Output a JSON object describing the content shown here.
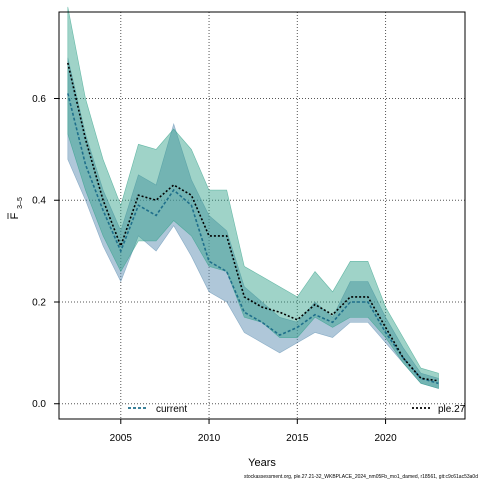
{
  "chart_data": {
    "type": "line",
    "xlabel": "Years",
    "ylabel_main": "F",
    "ylabel_sub": "3–5",
    "xlim": [
      2001.5,
      2024.5
    ],
    "ylim": [
      -0.03,
      0.77
    ],
    "x_ticks": [
      2005,
      2010,
      2015,
      2020
    ],
    "y_ticks": [
      0.0,
      0.2,
      0.4,
      0.6
    ],
    "y_tick_labels": [
      "0.0",
      "0.2",
      "0.4",
      "0.6"
    ],
    "grid": true,
    "legend_position": "bottom",
    "x": [
      2002,
      2003,
      2004,
      2005,
      2006,
      2007,
      2008,
      2009,
      2010,
      2011,
      2012,
      2013,
      2014,
      2015,
      2016,
      2017,
      2018,
      2019,
      2020,
      2021,
      2022,
      2023
    ],
    "bands": [
      {
        "color": "#5f8fb3",
        "opacity": 0.5,
        "lower": [
          0.48,
          0.4,
          0.31,
          0.24,
          0.33,
          0.3,
          0.35,
          0.29,
          0.22,
          0.2,
          0.14,
          0.12,
          0.1,
          0.12,
          0.14,
          0.13,
          0.16,
          0.16,
          0.12,
          0.08,
          0.04,
          0.03
        ],
        "upper": [
          0.68,
          0.53,
          0.42,
          0.34,
          0.45,
          0.43,
          0.55,
          0.44,
          0.37,
          0.34,
          0.23,
          0.2,
          0.17,
          0.16,
          0.2,
          0.17,
          0.24,
          0.24,
          0.17,
          0.11,
          0.06,
          0.05
        ]
      },
      {
        "color": "#2a9d84",
        "opacity": 0.45,
        "lower": [
          0.53,
          0.42,
          0.33,
          0.26,
          0.32,
          0.32,
          0.36,
          0.33,
          0.27,
          0.26,
          0.17,
          0.16,
          0.13,
          0.13,
          0.17,
          0.15,
          0.17,
          0.17,
          0.13,
          0.08,
          0.04,
          0.03
        ],
        "upper": [
          0.78,
          0.6,
          0.48,
          0.39,
          0.51,
          0.5,
          0.54,
          0.5,
          0.42,
          0.42,
          0.27,
          0.25,
          0.23,
          0.21,
          0.26,
          0.22,
          0.28,
          0.28,
          0.19,
          0.13,
          0.07,
          0.06
        ]
      }
    ],
    "series": [
      {
        "name": "current",
        "color": "#1f6f8b",
        "dash": "3,2",
        "values": [
          0.61,
          0.47,
          0.38,
          0.3,
          0.39,
          0.37,
          0.42,
          0.39,
          0.28,
          0.26,
          0.18,
          0.16,
          0.135,
          0.15,
          0.175,
          0.16,
          0.2,
          0.2,
          0.14,
          0.09,
          0.05,
          0.04
        ]
      },
      {
        "name": "ple.27",
        "color": "#000000",
        "dash": "2,2",
        "values": [
          0.67,
          0.52,
          0.4,
          0.31,
          0.41,
          0.4,
          0.43,
          0.41,
          0.33,
          0.33,
          0.21,
          0.19,
          0.18,
          0.165,
          0.195,
          0.175,
          0.21,
          0.21,
          0.15,
          0.09,
          0.05,
          0.045
        ]
      }
    ]
  },
  "footer": "stockassessment.org, ple.27.21-32_WKBPLACE_2024_nm05Fb_mo1_damed, r18561, git:c9c61ac53a0d"
}
